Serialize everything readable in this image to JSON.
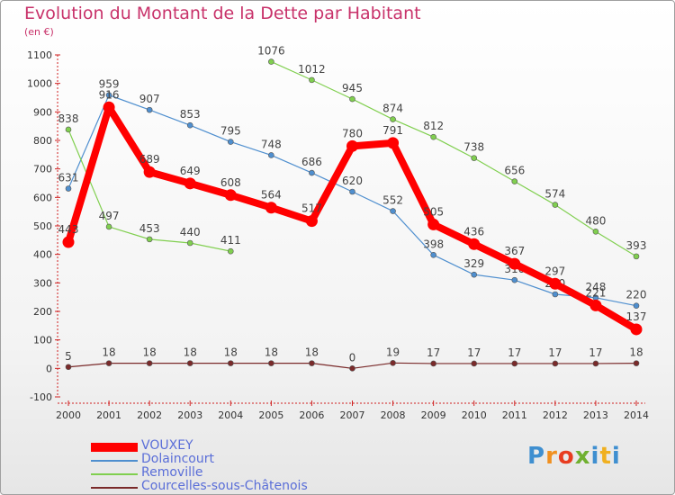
{
  "title": "Evolution du Montant de la Dette par Habitant",
  "subtitle": "(en €)",
  "logo_text": "Proxiti",
  "chart_data": {
    "type": "line",
    "title": "Evolution du Montant de la Dette par Habitant",
    "subtitle": "(en €)",
    "xlabel": "",
    "ylabel": "",
    "x": [
      "2000",
      "2001",
      "2002",
      "2003",
      "2004",
      "2005",
      "2006",
      "2007",
      "2008",
      "2009",
      "2010",
      "2011",
      "2012",
      "2013",
      "2014"
    ],
    "ylim": [
      -100,
      1100
    ],
    "yticks": [
      -100,
      0,
      100,
      200,
      300,
      400,
      500,
      600,
      700,
      800,
      900,
      1000,
      1100
    ],
    "grid": false,
    "legend_position": "bottom-left",
    "series": [
      {
        "name": "VOUXEY",
        "color": "#ff0000",
        "values": [
          443,
          916,
          689,
          649,
          608,
          564,
          517,
          780,
          791,
          505,
          436,
          367,
          297,
          221,
          137
        ],
        "labels": [
          "443",
          "916",
          "689",
          "649",
          "608",
          "564",
          "517",
          "780",
          "791",
          "505",
          "436",
          "367",
          "297",
          "221",
          "137"
        ]
      },
      {
        "name": "Dolaincourt",
        "color": "#4f8fcf",
        "values": [
          631,
          959,
          907,
          853,
          795,
          748,
          686,
          620,
          552,
          398,
          329,
          310,
          260,
          248,
          220
        ],
        "labels": [
          "631",
          "959",
          "907",
          "853",
          "795",
          "748",
          "686",
          "620",
          "552",
          "398",
          "329",
          "310",
          "260",
          "248",
          "220"
        ]
      },
      {
        "name": "Removille",
        "color": "#80cf4f",
        "values": [
          838,
          497,
          453,
          440,
          411,
          null,
          null,
          null,
          null,
          null,
          null,
          null,
          null,
          null,
          null
        ],
        "labels": [
          "838",
          "497",
          "453",
          "440",
          "411",
          "",
          "",
          "",
          "",
          "",
          "",
          "",
          "",
          "",
          ""
        ]
      },
      {
        "name": "Removille",
        "color": "#80cf4f",
        "legend": false,
        "values": [
          null,
          null,
          null,
          null,
          null,
          1076,
          1012,
          945,
          874,
          812,
          738,
          656,
          574,
          480,
          393
        ],
        "labels": [
          "",
          "",
          "",
          "",
          "",
          "1076",
          "1012",
          "945",
          "874",
          "812",
          "738",
          "656",
          "574",
          "480",
          "393"
        ]
      },
      {
        "name": "Courcelles-sous-Châtenois",
        "color": "#7a2a2a",
        "values": [
          5,
          18,
          18,
          18,
          18,
          18,
          18,
          0,
          19,
          17,
          17,
          17,
          17,
          17,
          18
        ],
        "labels": [
          "5",
          "18",
          "18",
          "18",
          "18",
          "18",
          "18",
          "0",
          "19",
          "17",
          "17",
          "17",
          "17",
          "17",
          "18"
        ]
      }
    ],
    "legend": [
      {
        "name": "VOUXEY",
        "color": "#ff0000"
      },
      {
        "name": "Dolaincourt",
        "color": "#4f8fcf"
      },
      {
        "name": "Removille",
        "color": "#80cf4f"
      },
      {
        "name": "Courcelles-sous-Châtenois",
        "color": "#7a2a2a"
      }
    ]
  }
}
